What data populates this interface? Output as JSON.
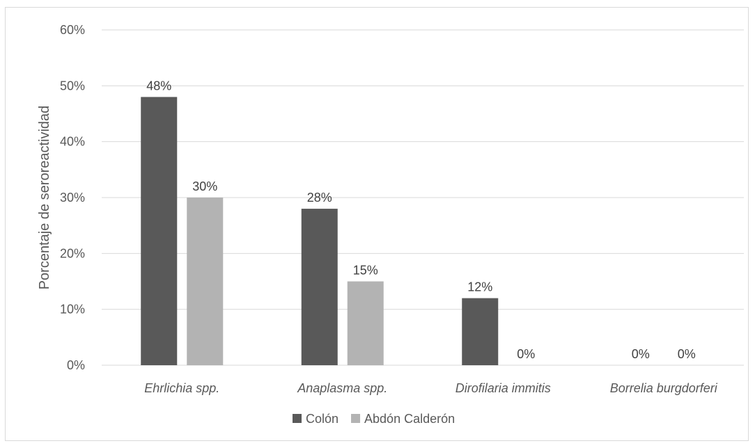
{
  "chart_data": {
    "type": "bar",
    "title": "",
    "xlabel": "",
    "ylabel": "Porcentaje de seroreactividad",
    "ylim": [
      0,
      60
    ],
    "yticks": [
      0,
      10,
      20,
      30,
      40,
      50,
      60
    ],
    "ytick_labels": [
      "0%",
      "10%",
      "20%",
      "30%",
      "40%",
      "50%",
      "60%"
    ],
    "grid": true,
    "legend_position": "bottom",
    "categories": [
      "Ehrlichia spp.",
      "Anaplasma spp.",
      "Dirofilaria immitis",
      "Borrelia burgdorferi"
    ],
    "series": [
      {
        "name": "Colón",
        "color": "#595959",
        "values": [
          48,
          28,
          12,
          0
        ],
        "labels": [
          "48%",
          "28%",
          "12%",
          "0%"
        ]
      },
      {
        "name": "Abdón Calderón",
        "color": "#b3b3b3",
        "values": [
          30,
          15,
          0,
          0
        ],
        "labels": [
          "30%",
          "15%",
          "0%",
          "0%"
        ]
      }
    ]
  },
  "colors": {
    "gridline": "#d9d9d9",
    "axis_text": "#595959",
    "data_label": "#404040"
  }
}
